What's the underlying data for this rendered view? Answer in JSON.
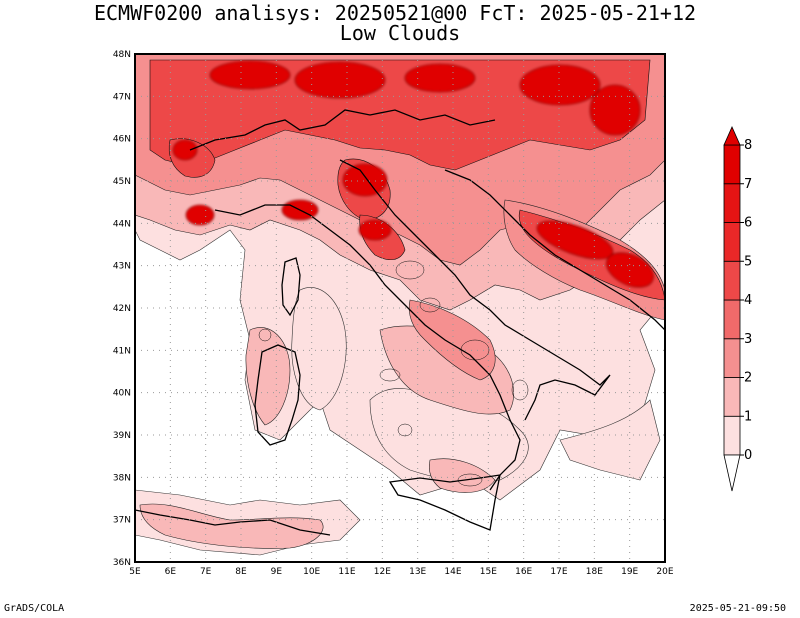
{
  "title": "ECMWF0200 analisys: 20250521@00 FcT: 2025-05-21+12",
  "subtitle": "Low Clouds",
  "footer_left": "GrADS/COLA",
  "footer_right": "2025-05-21-09:50",
  "map": {
    "lon_range": [
      5,
      20
    ],
    "lat_range": [
      36,
      48
    ],
    "lon_ticks": [
      "5E",
      "6E",
      "7E",
      "8E",
      "9E",
      "10E",
      "11E",
      "12E",
      "13E",
      "14E",
      "15E",
      "16E",
      "17E",
      "18E",
      "19E",
      "20E"
    ],
    "lat_ticks": [
      "36N",
      "37N",
      "38N",
      "39N",
      "40N",
      "41N",
      "42N",
      "43N",
      "44N",
      "45N",
      "46N",
      "47N",
      "48N"
    ],
    "grid": "dotted",
    "field": "Low Clouds"
  },
  "colorbar": {
    "levels": [
      "0",
      "1",
      "2",
      "3",
      "4",
      "5",
      "6",
      "7",
      "8"
    ],
    "colors": [
      "#ffffff",
      "#fde0e0",
      "#f9b8b8",
      "#f59090",
      "#f16a6a",
      "#ed4848",
      "#ea2828",
      "#e51414",
      "#e00000"
    ]
  }
}
